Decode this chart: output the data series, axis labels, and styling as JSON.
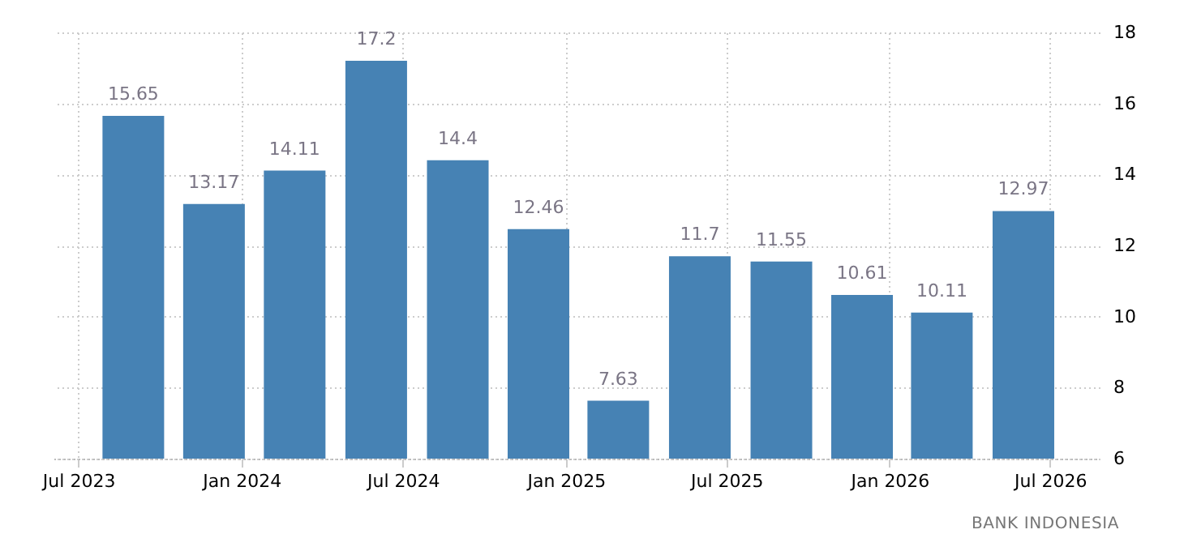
{
  "chart_data": {
    "type": "bar",
    "x": [
      "2023-09",
      "2023-12",
      "2024-03",
      "2024-06",
      "2024-09",
      "2024-12",
      "2025-03",
      "2025-06",
      "2025-09",
      "2025-12",
      "2026-03",
      "2026-06"
    ],
    "values": [
      15.65,
      13.17,
      14.11,
      17.2,
      14.4,
      12.46,
      7.63,
      11.7,
      11.55,
      10.61,
      10.11,
      12.97
    ],
    "color": "#4682b4",
    "data_labels": true,
    "xlim": [
      "2023-06-03",
      "2026-08-26"
    ],
    "xticks": [
      {
        "value": "2023-07-01",
        "label": "Jul 2023"
      },
      {
        "value": "2024-01-01",
        "label": "Jan 2024"
      },
      {
        "value": "2024-07-01",
        "label": "Jul 2024"
      },
      {
        "value": "2025-01-01",
        "label": "Jan 2025"
      },
      {
        "value": "2025-07-01",
        "label": "Jul 2025"
      },
      {
        "value": "2026-01-01",
        "label": "Jan 2026"
      },
      {
        "value": "2026-07-01",
        "label": "Jul 2026"
      }
    ],
    "ylim": [
      6,
      18
    ],
    "yticks": [
      6,
      8,
      10,
      12,
      14,
      16,
      18
    ],
    "grid": true,
    "annotations": [
      "BANK INDONESIA"
    ]
  }
}
